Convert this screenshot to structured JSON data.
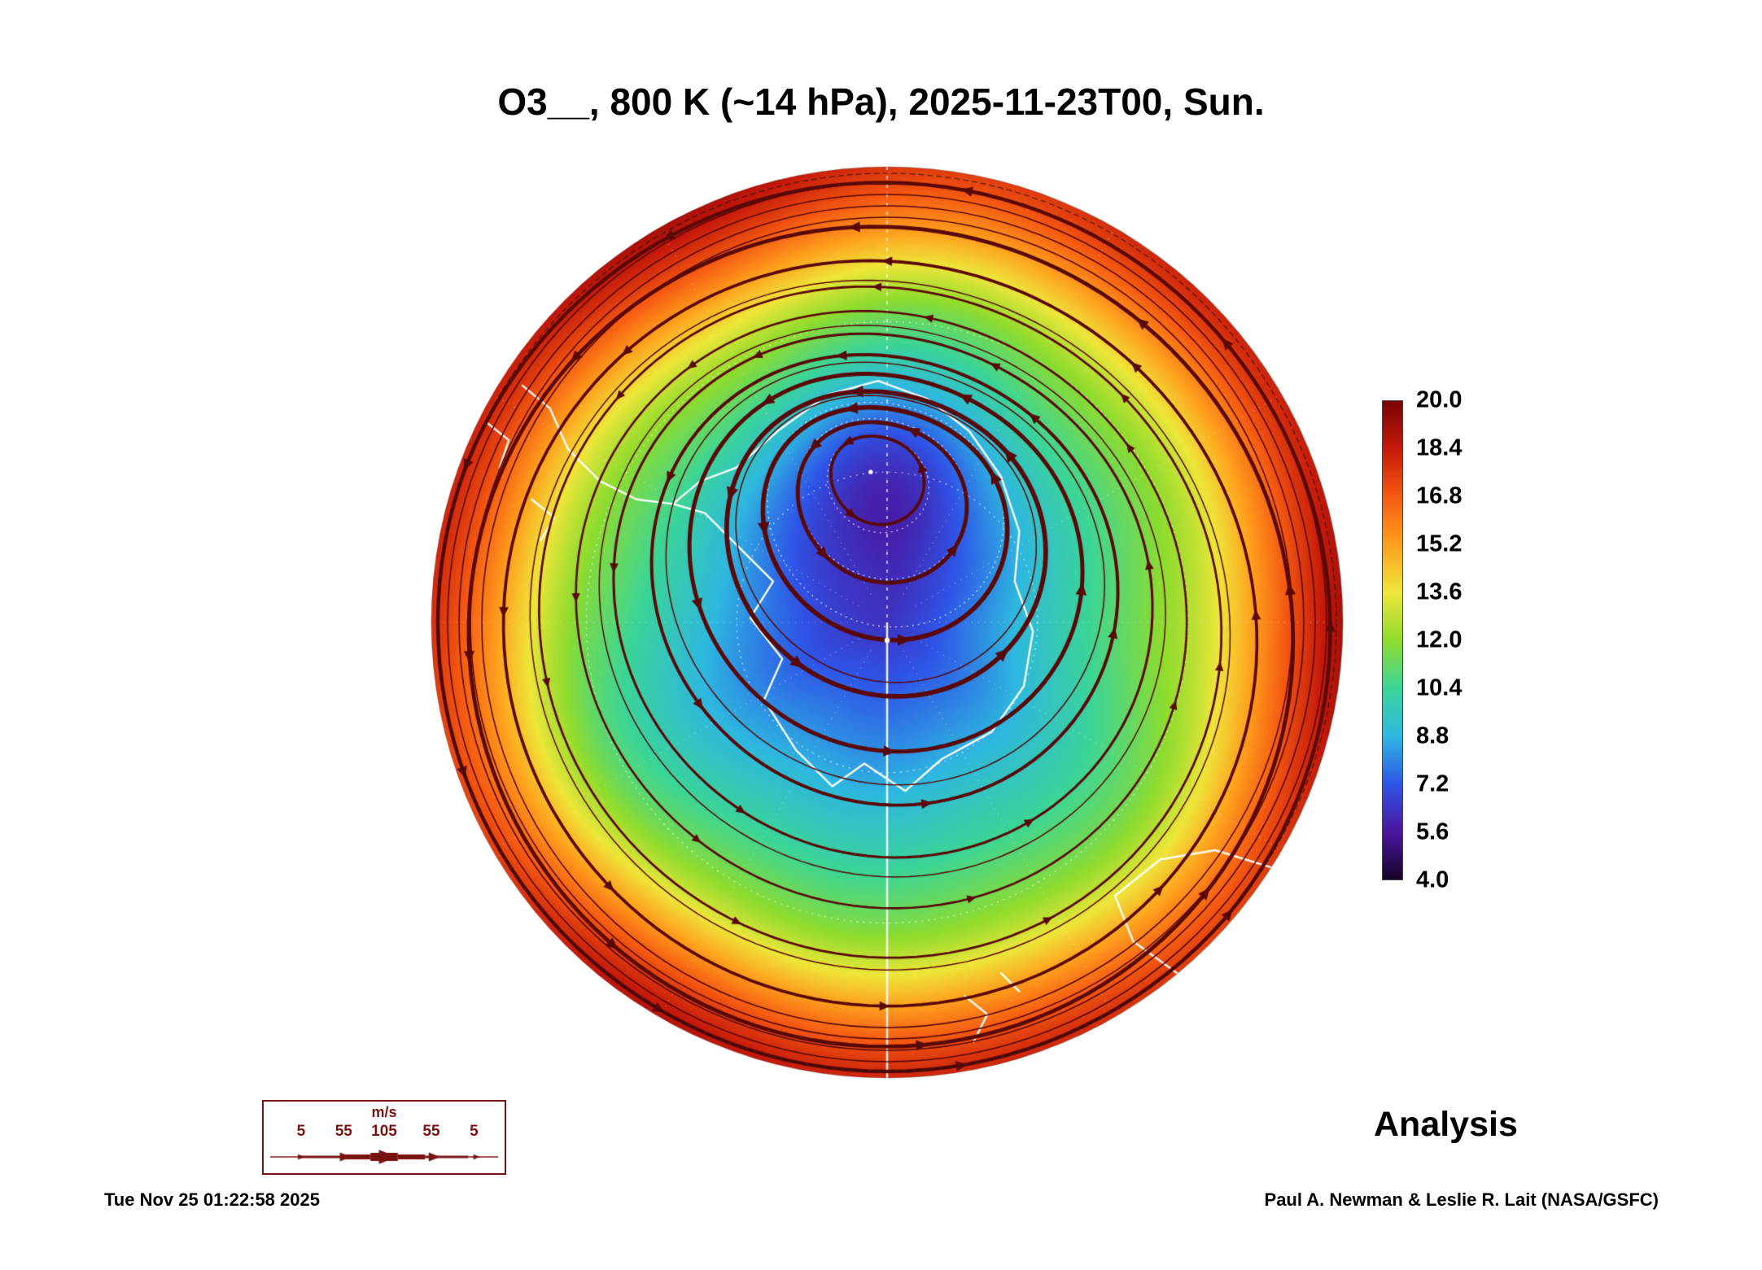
{
  "title": "O3__, 800 K (~14 hPa), 2025-11-23T00, Sun.",
  "annotations": {
    "analysis": "Analysis",
    "timestamp": "Tue Nov 25 01:22:58 2025",
    "credit": "Paul A. Newman & Leslie R. Lait (NASA/GSFC)"
  },
  "colorbar": {
    "ticks": [
      "20.0",
      "18.4",
      "16.8",
      "15.2",
      "13.6",
      "12.0",
      "10.4",
      "8.8",
      "7.2",
      "5.6",
      "4.0"
    ]
  },
  "wind_legend": {
    "unit": "m/s",
    "labels": [
      "5",
      "55",
      "105",
      "55",
      "5"
    ],
    "speeds": [
      5,
      55,
      105,
      55,
      5
    ],
    "color": "#7a1212"
  },
  "chart_data": {
    "type": "heatmap",
    "projection": "south-polar-stereographic",
    "variable": "O3",
    "level": "800 K (~14 hPa)",
    "valid_time": "2025-11-23T00, Sun.",
    "product": "Analysis",
    "colorbar_values": [
      20.0,
      18.4,
      16.8,
      15.2,
      13.6,
      12.0,
      10.4,
      8.8,
      7.2,
      5.6,
      4.0
    ],
    "colorbar_range": [
      4.0,
      20.0
    ],
    "color_stops": [
      {
        "v": 4.0,
        "c": "#160429"
      },
      {
        "v": 5.6,
        "c": "#4a16a0"
      },
      {
        "v": 7.2,
        "c": "#2f55e8"
      },
      {
        "v": 8.8,
        "c": "#2eb8e0"
      },
      {
        "v": 10.4,
        "c": "#3bd598"
      },
      {
        "v": 12.0,
        "c": "#8fdc2e"
      },
      {
        "v": 13.6,
        "c": "#eee63a"
      },
      {
        "v": 15.2,
        "c": "#ffa01e"
      },
      {
        "v": 16.8,
        "c": "#f55a12"
      },
      {
        "v": 18.4,
        "c": "#c5190b"
      },
      {
        "v": 20.0,
        "c": "#7a0303"
      }
    ],
    "streamline_color": "#5a0909",
    "coastline_color": "#ffffff",
    "graticule_color": "#ffffff",
    "vortex": {
      "offset_x": -0.036,
      "offset_y": -0.33,
      "core_value": 6.0,
      "note": "low-ozone polar vortex displaced off the pole; winds circulate around it"
    },
    "secondary_low": {
      "offset_x": -0.27,
      "offset_y": 0.33,
      "depth": 1.1
    },
    "field_summary": "Low ozone (6-9) inside displaced vortex near pole, 10-13 across mid radii, 15-18 orange-red collar at the disc edge",
    "coastlines": {
      "antarctica": [
        [
          -0.8,
          -0.52
        ],
        [
          -0.74,
          -0.47
        ],
        [
          -0.7,
          -0.38
        ],
        [
          -0.63,
          -0.31
        ],
        [
          -0.55,
          -0.27
        ],
        [
          -0.47,
          -0.26
        ],
        [
          -0.41,
          -0.31
        ],
        [
          -0.33,
          -0.34
        ],
        [
          -0.24,
          -0.42
        ],
        [
          -0.13,
          -0.5
        ],
        [
          -0.02,
          -0.53
        ],
        [
          0.09,
          -0.49
        ],
        [
          0.18,
          -0.42
        ],
        [
          0.25,
          -0.32
        ],
        [
          0.29,
          -0.2
        ],
        [
          0.28,
          -0.09
        ],
        [
          0.32,
          0.02
        ],
        [
          0.3,
          0.14
        ],
        [
          0.23,
          0.24
        ],
        [
          0.12,
          0.3
        ],
        [
          0.04,
          0.37
        ],
        [
          -0.05,
          0.31
        ],
        [
          -0.12,
          0.36
        ],
        [
          -0.2,
          0.28
        ],
        [
          -0.27,
          0.17
        ],
        [
          -0.23,
          0.08
        ],
        [
          -0.3,
          -0.01
        ],
        [
          -0.25,
          -0.09
        ],
        [
          -0.33,
          -0.17
        ],
        [
          -0.4,
          -0.24
        ],
        [
          -0.47,
          -0.26
        ]
      ],
      "islands_1": [
        [
          -0.88,
          -0.44
        ],
        [
          -0.83,
          -0.4
        ],
        [
          -0.85,
          -0.34
        ]
      ],
      "islands_2": [
        [
          -0.78,
          -0.27
        ],
        [
          -0.73,
          -0.23
        ],
        [
          -0.76,
          -0.18
        ]
      ],
      "south_america": [
        [
          -0.98,
          -0.5
        ],
        [
          -0.9,
          -0.55
        ],
        [
          -0.83,
          -0.6
        ],
        [
          -0.86,
          -0.68
        ],
        [
          -0.92,
          -0.73
        ],
        [
          -0.99,
          -0.76
        ]
      ],
      "africa": [
        [
          0.62,
          -0.9
        ],
        [
          0.7,
          -0.83
        ],
        [
          0.8,
          -0.76
        ],
        [
          0.9,
          -0.72
        ],
        [
          1.0,
          -0.7
        ]
      ],
      "australia": [
        [
          0.5,
          0.6
        ],
        [
          0.6,
          0.52
        ],
        [
          0.72,
          0.5
        ],
        [
          0.85,
          0.54
        ],
        [
          0.97,
          0.62
        ],
        [
          1.05,
          0.72
        ],
        [
          0.95,
          0.8
        ],
        [
          0.8,
          0.82
        ],
        [
          0.65,
          0.78
        ],
        [
          0.54,
          0.7
        ],
        [
          0.5,
          0.6
        ]
      ],
      "new_zealand_north": [
        [
          0.25,
          0.77
        ],
        [
          0.29,
          0.81
        ]
      ],
      "new_zealand_south": [
        [
          0.17,
          0.82
        ],
        [
          0.22,
          0.86
        ],
        [
          0.19,
          0.92
        ]
      ]
    }
  }
}
